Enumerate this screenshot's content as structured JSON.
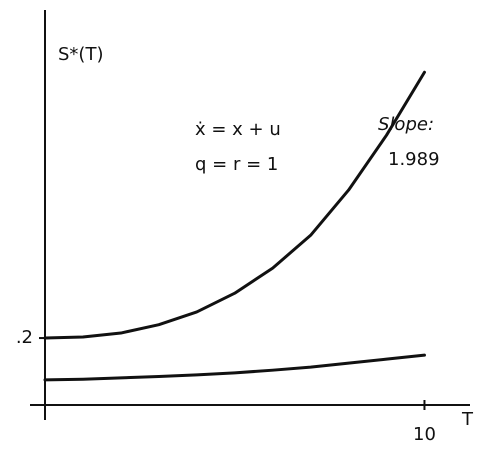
{
  "chart_data": {
    "type": "line",
    "y_label": "S*(T)",
    "x_label": "T",
    "annotations": [
      "ẋ = x + u",
      "q = r = 1",
      "Slope:",
      "1.989"
    ],
    "x": [
      0,
      1,
      2,
      3,
      4,
      5,
      6,
      7,
      8,
      9,
      10
    ],
    "series": [
      {
        "color": "#111111",
        "values": [
          0.2,
          0.203,
          0.215,
          0.24,
          0.278,
          0.334,
          0.409,
          0.507,
          0.642,
          0.806,
          0.994
        ]
      },
      {
        "color": "#111111",
        "values": [
          0.075,
          0.077,
          0.081,
          0.085,
          0.09,
          0.096,
          0.104,
          0.113,
          0.125,
          0.137,
          0.149
        ]
      }
    ],
    "xlim": [
      0,
      11.2
    ],
    "ylim": [
      0,
      1.18
    ],
    "xticks": [
      10
    ],
    "yticks": [
      {
        "value": 0.2,
        "label": ".2"
      }
    ],
    "grid": false
  }
}
